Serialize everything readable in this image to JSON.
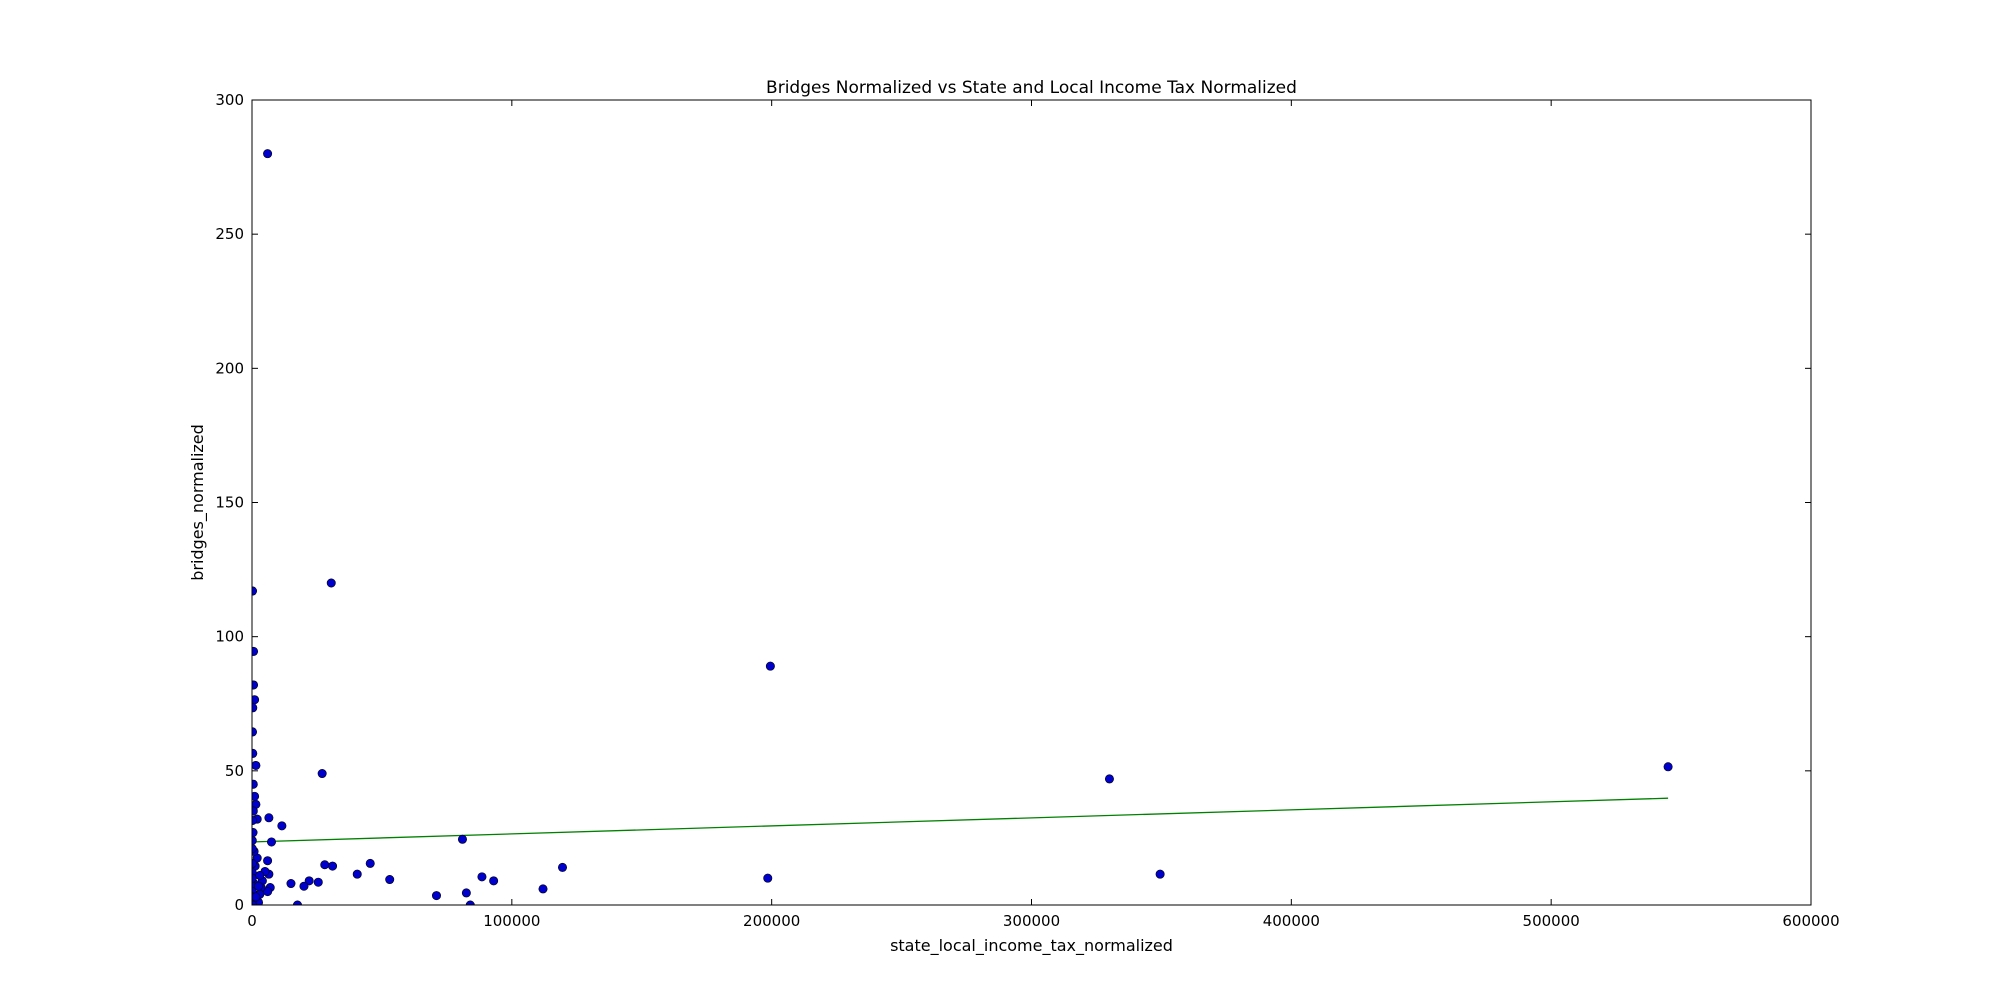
{
  "chart_data": {
    "type": "scatter",
    "title": "Bridges Normalized vs State and Local Income Tax Normalized",
    "xlabel": "state_local_income_tax_normalized",
    "ylabel": "bridges_normalized",
    "xlim": [
      0,
      600000
    ],
    "ylim": [
      0,
      300
    ],
    "x_ticks": [
      0,
      100000,
      200000,
      300000,
      400000,
      500000,
      600000
    ],
    "x_tick_labels": [
      "0",
      "100000",
      "200000",
      "300000",
      "400000",
      "500000",
      "600000"
    ],
    "y_ticks": [
      0,
      50,
      100,
      150,
      200,
      250,
      300
    ],
    "y_tick_labels": [
      "0",
      "50",
      "100",
      "150",
      "200",
      "250",
      "300"
    ],
    "grid": false,
    "marker_color": "#0000cc",
    "line_color": "#008000",
    "series": [
      {
        "type": "scatter",
        "points": [
          [
            6000,
            280
          ],
          [
            30500,
            120
          ],
          [
            199500,
            89
          ],
          [
            330000,
            47
          ],
          [
            545000,
            51.5
          ],
          [
            349500,
            11.5
          ],
          [
            198500,
            10
          ],
          [
            119500,
            14
          ],
          [
            112000,
            6
          ],
          [
            93000,
            9
          ],
          [
            88500,
            10.5
          ],
          [
            82500,
            4.5
          ],
          [
            84000,
            0
          ],
          [
            81000,
            24.5
          ],
          [
            71000,
            3.5
          ],
          [
            53000,
            9.5
          ],
          [
            45500,
            15.5
          ],
          [
            40500,
            11.5
          ],
          [
            31000,
            14.5
          ],
          [
            28000,
            15
          ],
          [
            27000,
            49
          ],
          [
            25500,
            8.5
          ],
          [
            22000,
            9
          ],
          [
            20000,
            7
          ],
          [
            17500,
            0
          ],
          [
            15000,
            8
          ],
          [
            11500,
            29.5
          ],
          [
            7500,
            23.5
          ],
          [
            6500,
            32.5
          ],
          [
            6000,
            16.5
          ],
          [
            6500,
            11.5
          ],
          [
            7000,
            6.5
          ],
          [
            6000,
            5
          ],
          [
            5000,
            12.5
          ],
          [
            4000,
            9
          ],
          [
            3500,
            6.5
          ],
          [
            3000,
            4
          ],
          [
            2500,
            1
          ],
          [
            2000,
            32
          ],
          [
            2000,
            17.5
          ],
          [
            1500,
            52
          ],
          [
            1500,
            37.5
          ],
          [
            1200,
            14.5
          ],
          [
            1000,
            40.5
          ],
          [
            1000,
            76.5
          ],
          [
            800,
            20
          ],
          [
            800,
            8
          ],
          [
            600,
            94.5
          ],
          [
            600,
            82
          ],
          [
            500,
            45
          ],
          [
            500,
            35
          ],
          [
            400,
            27
          ],
          [
            300,
            73.5
          ],
          [
            300,
            56.5
          ],
          [
            200,
            64.5
          ],
          [
            200,
            117
          ],
          [
            200,
            31.5
          ],
          [
            100,
            24
          ],
          [
            100,
            21
          ],
          [
            100,
            15.5
          ],
          [
            100,
            12
          ],
          [
            100,
            10
          ],
          [
            100,
            7
          ],
          [
            100,
            5
          ],
          [
            100,
            3
          ],
          [
            100,
            1.5
          ],
          [
            100,
            0
          ],
          [
            1500,
            3
          ],
          [
            2500,
            7
          ],
          [
            3000,
            11
          ]
        ]
      },
      {
        "type": "line",
        "points": [
          [
            0,
            23.5
          ],
          [
            545000,
            39.8
          ]
        ]
      }
    ]
  }
}
